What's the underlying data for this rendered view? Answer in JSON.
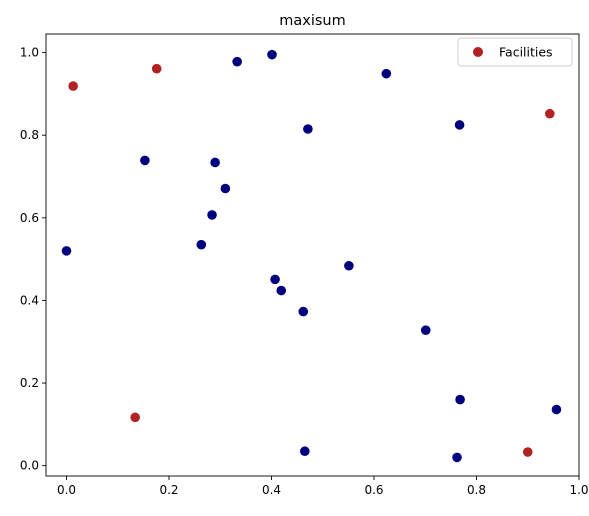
{
  "chart_data": {
    "type": "scatter",
    "title": "maxisum",
    "xlabel": "",
    "ylabel": "",
    "xlim": [
      -0.04,
      1.0
    ],
    "ylim": [
      -0.025,
      1.045
    ],
    "xticks": [
      0.0,
      0.2,
      0.4,
      0.6,
      0.8,
      1.0
    ],
    "xtick_labels": [
      "0.0",
      "0.2",
      "0.4",
      "0.6",
      "0.8",
      "1.0"
    ],
    "yticks": [
      0.0,
      0.2,
      0.4,
      0.6,
      0.8,
      1.0
    ],
    "ytick_labels": [
      "0.0",
      "0.2",
      "0.4",
      "0.6",
      "0.8",
      "1.0"
    ],
    "grid": false,
    "legend_position": "top-right",
    "series": [
      {
        "color": "#00007f",
        "points": [
          [
            0.333,
            0.978
          ],
          [
            0.401,
            0.995
          ],
          [
            0.624,
            0.949
          ],
          [
            0.471,
            0.815
          ],
          [
            0.767,
            0.825
          ],
          [
            0.153,
            0.739
          ],
          [
            0.29,
            0.734
          ],
          [
            0.31,
            0.671
          ],
          [
            0.284,
            0.607
          ],
          [
            0.263,
            0.535
          ],
          [
            0.0,
            0.52
          ],
          [
            0.551,
            0.484
          ],
          [
            0.407,
            0.451
          ],
          [
            0.419,
            0.424
          ],
          [
            0.462,
            0.373
          ],
          [
            0.701,
            0.328
          ],
          [
            0.768,
            0.16
          ],
          [
            0.956,
            0.136
          ],
          [
            0.465,
            0.035
          ],
          [
            0.762,
            0.02
          ]
        ]
      },
      {
        "name": "Facilities",
        "color": "#b22222",
        "points": [
          [
            0.013,
            0.919
          ],
          [
            0.176,
            0.961
          ],
          [
            0.943,
            0.852
          ],
          [
            0.134,
            0.117
          ],
          [
            0.9,
            0.033
          ]
        ]
      }
    ]
  }
}
